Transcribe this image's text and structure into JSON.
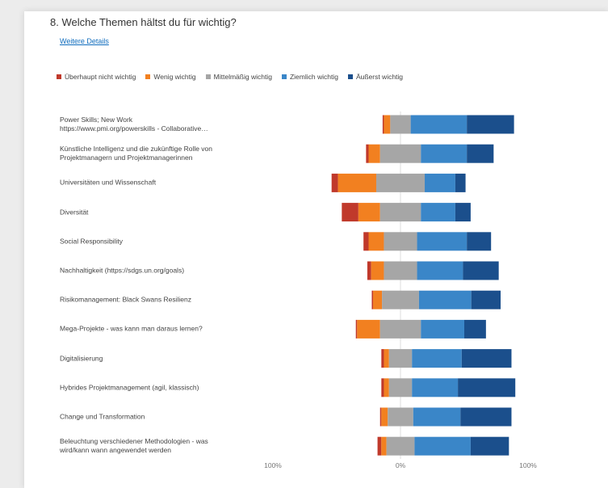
{
  "survey": {
    "question": "8. Welche Themen hältst du für wichtig?",
    "details_link": "Weitere Details"
  },
  "colors": {
    "ueberhaupt_nicht": "#c0392b",
    "wenig": "#f28020",
    "mittel": "#a6a6a6",
    "ziemlich": "#3a86c8",
    "aeusserst": "#1b4f8c",
    "zero_line": "#dddddd"
  },
  "chart_data": {
    "type": "bar",
    "subtype": "diverging-stacked",
    "legend_position": "top",
    "legend": [
      "Überhaupt nicht wichtig",
      "Wenig wichtig",
      "Mittelmäßig wichtig",
      "Ziemlich wichtig",
      "Äußerst wichtig"
    ],
    "categories": [
      [
        "Power Skills; New Work",
        "https://www.pmi.org/powerskills - Collaborative…"
      ],
      [
        "Künstliche Intelligenz und die zukünftige Rolle von",
        "Projektmanagern und Projektmanagerinnen"
      ],
      [
        "Universitäten und Wissenschaft"
      ],
      [
        "Diversität"
      ],
      [
        "Social Responsibility"
      ],
      [
        "Nachhaltigkeit (https://sdgs.un.org/goals)"
      ],
      [
        "Risikomanagement: Black Swans Resilienz"
      ],
      [
        "Mega-Projekte - was kann man daraus lernen?"
      ],
      [
        "Digitalisierung"
      ],
      [
        "Hybrides Projektmanagement (agil, klassisch)"
      ],
      [
        "Change und Transformation"
      ],
      [
        "Beleuchtung verschiedener Methodologien - was",
        "wird/kann wann angewendet werden"
      ]
    ],
    "series": [
      {
        "name": "Überhaupt nicht wichtig",
        "values": [
          1,
          2,
          5,
          13,
          4,
          3,
          1,
          1,
          2,
          2,
          1,
          3
        ]
      },
      {
        "name": "Wenig wichtig",
        "values": [
          5,
          9,
          30,
          17,
          12,
          10,
          7,
          18,
          4,
          4,
          5,
          4
        ]
      },
      {
        "name": "Mittelmäßig wichtig",
        "values": [
          16,
          32,
          38,
          32,
          26,
          26,
          29,
          32,
          18,
          18,
          20,
          22
        ]
      },
      {
        "name": "Ziemlich wichtig",
        "values": [
          44,
          36,
          24,
          27,
          39,
          36,
          41,
          34,
          39,
          36,
          37,
          44
        ]
      },
      {
        "name": "Äußerst wichtig",
        "values": [
          37,
          21,
          8,
          12,
          19,
          28,
          23,
          17,
          39,
          45,
          40,
          30
        ]
      }
    ],
    "xlim": [
      -100,
      100
    ],
    "tick_labels": [
      "100%",
      "0%",
      "100%"
    ],
    "grid": false
  }
}
